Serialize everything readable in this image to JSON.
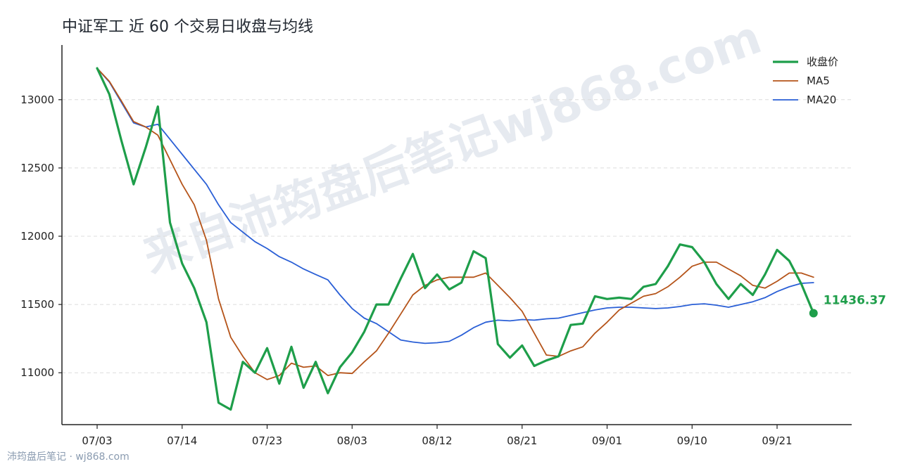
{
  "title": "中证军工 近 60 个交易日收盘与均线",
  "watermark": "来自沛筠盘后笔记wj868.com",
  "footer": "沛筠盘后笔记 · wj868.com",
  "colors": {
    "close": "#1e9e4a",
    "ma5": "#b5541a",
    "ma20": "#2a5fd6",
    "grid": "#dcdcdc",
    "axis": "#222222"
  },
  "chart_data": {
    "type": "line",
    "title": "中证军工 近 60 个交易日收盘与均线",
    "xlabel": "",
    "ylabel": "",
    "ylim": [
      10620,
      13380
    ],
    "yticks": [
      11000,
      11500,
      12000,
      12500,
      13000
    ],
    "xtick_labels": [
      "07/03",
      "07/14",
      "07/23",
      "08/03",
      "08/12",
      "08/21",
      "09/01",
      "09/10",
      "09/21"
    ],
    "xtick_index": [
      0,
      7,
      14,
      21,
      28,
      35,
      42,
      49,
      56
    ],
    "grid": "horizontal dashed",
    "legend_position": "top-right",
    "end_label": "11436.37",
    "series": [
      {
        "name": "收盘价",
        "values": [
          13230,
          13040,
          12700,
          12380,
          12650,
          12950,
          12100,
          11800,
          11620,
          11370,
          10780,
          10730,
          11080,
          11000,
          11180,
          10920,
          11190,
          10890,
          11080,
          10850,
          11040,
          11150,
          11300,
          11500,
          11500,
          11690,
          11870,
          11620,
          11720,
          11610,
          11660,
          11890,
          11840,
          11210,
          11110,
          11200,
          11050,
          11090,
          11120,
          11350,
          11360,
          11560,
          11540,
          11550,
          11540,
          11630,
          11650,
          11780,
          11940,
          11920,
          11810,
          11650,
          11540,
          11650,
          11570,
          11720,
          11900,
          11820,
          11650,
          11436.37
        ]
      },
      {
        "name": "MA5",
        "values": [
          13230,
          13135,
          12990,
          12840,
          12800,
          12740,
          12560,
          12380,
          12230,
          11970,
          11540,
          11260,
          11120,
          11000,
          10950,
          10980,
          11070,
          11040,
          11050,
          10980,
          11000,
          10995,
          11080,
          11160,
          11290,
          11430,
          11570,
          11640,
          11680,
          11700,
          11700,
          11700,
          11730,
          11640,
          11550,
          11450,
          11290,
          11130,
          11120,
          11160,
          11190,
          11290,
          11370,
          11460,
          11510,
          11560,
          11580,
          11630,
          11700,
          11780,
          11810,
          11810,
          11760,
          11710,
          11640,
          11620,
          11670,
          11730,
          11730,
          11700
        ]
      },
      {
        "name": "MA20",
        "values": [
          13230,
          13130,
          12980,
          12830,
          12800,
          12820,
          12710,
          12600,
          12490,
          12380,
          12230,
          12100,
          12030,
          11960,
          11910,
          11850,
          11810,
          11760,
          11720,
          11680,
          11570,
          11470,
          11400,
          11360,
          11300,
          11240,
          11225,
          11215,
          11220,
          11230,
          11275,
          11330,
          11370,
          11385,
          11380,
          11390,
          11385,
          11395,
          11400,
          11420,
          11440,
          11460,
          11475,
          11480,
          11480,
          11475,
          11470,
          11475,
          11485,
          11500,
          11505,
          11495,
          11480,
          11500,
          11520,
          11550,
          11595,
          11630,
          11655,
          11660
        ]
      }
    ]
  }
}
